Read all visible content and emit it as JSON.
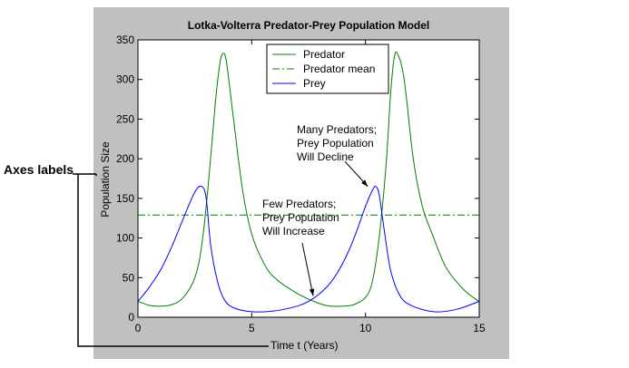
{
  "callout": {
    "label": "Axes labels"
  },
  "colors": {
    "figure_bg": "#c0c0c0",
    "axes_bg": "#ffffff",
    "predator": "#008000",
    "prey": "#0000ff"
  },
  "chart_data": {
    "type": "line",
    "title": "Lotka-Volterra Predator-Prey Population Model",
    "xlabel": "Time t (Years)",
    "ylabel": "Population Size",
    "xlim": [
      0,
      15
    ],
    "ylim": [
      0,
      350
    ],
    "xticks": [
      0,
      5,
      10,
      15
    ],
    "yticks": [
      0,
      50,
      100,
      150,
      200,
      250,
      300,
      350
    ],
    "legend_position": "top-center",
    "series": [
      {
        "name": "Predator",
        "style": "solid",
        "color": "#008000",
        "x": [
          0,
          0.5,
          1,
          1.5,
          2,
          2.5,
          2.8,
          3.1,
          3.4,
          3.6,
          3.75,
          3.9,
          4.2,
          4.6,
          5,
          5.5,
          6,
          7,
          8,
          8.5,
          9,
          9.5,
          10,
          10.3,
          10.6,
          10.9,
          11.1,
          11.25,
          11.4,
          11.7,
          12.1,
          12.5,
          13,
          13.5,
          14,
          14.5,
          15
        ],
        "values": [
          20,
          15,
          14,
          16,
          25,
          50,
          90,
          170,
          270,
          320,
          333,
          320,
          250,
          160,
          105,
          70,
          50,
          30,
          17,
          14,
          14,
          16,
          25,
          45,
          100,
          190,
          280,
          325,
          333,
          300,
          200,
          140,
          100,
          65,
          45,
          30,
          20
        ]
      },
      {
        "name": "Predator mean",
        "style": "dashdot",
        "color": "#008000",
        "x": [
          0,
          15
        ],
        "values": [
          129,
          129
        ]
      },
      {
        "name": "Prey",
        "style": "solid",
        "color": "#0000ff",
        "x": [
          0,
          0.5,
          1,
          1.5,
          2,
          2.5,
          2.8,
          3.0,
          3.2,
          3.5,
          3.8,
          4.2,
          5,
          6,
          7,
          7.5,
          8,
          8.5,
          9,
          9.5,
          10,
          10.3,
          10.45,
          10.6,
          10.8,
          11.1,
          11.5,
          12,
          13,
          14,
          15
        ],
        "values": [
          20,
          38,
          60,
          90,
          125,
          158,
          165,
          150,
          90,
          45,
          22,
          12,
          7,
          8,
          14,
          20,
          30,
          45,
          68,
          100,
          140,
          160,
          165,
          155,
          115,
          60,
          28,
          15,
          7,
          10,
          20
        ]
      }
    ],
    "annotations": [
      {
        "lines": [
          "Many Predators;",
          "Prey Population",
          "Will Decline"
        ],
        "arrow_to": [
          10.1,
          165
        ]
      },
      {
        "lines": [
          "Few Predators;",
          "Prey Population",
          "Will Increase"
        ],
        "arrow_to": [
          7.7,
          27
        ]
      }
    ]
  }
}
